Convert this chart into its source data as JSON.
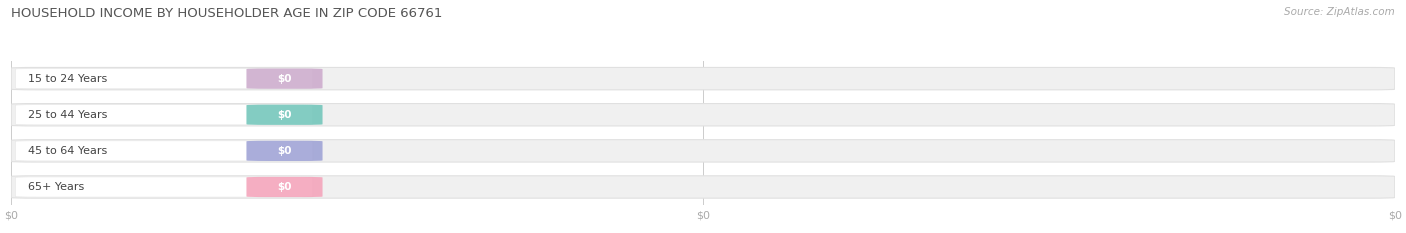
{
  "title": "HOUSEHOLD INCOME BY HOUSEHOLDER AGE IN ZIP CODE 66761",
  "source_text": "Source: ZipAtlas.com",
  "categories": [
    "15 to 24 Years",
    "25 to 44 Years",
    "45 to 64 Years",
    "65+ Years"
  ],
  "values": [
    0,
    0,
    0,
    0
  ],
  "bar_colors": [
    "#cba8cb",
    "#6dc4b8",
    "#9b9fd4",
    "#f4a0b8"
  ],
  "bar_bg_color": "#f0f0f0",
  "tick_label_color": "#aaaaaa",
  "title_color": "#555555",
  "source_color": "#aaaaaa",
  "value_label": "$0",
  "x_tick_positions": [
    0.0,
    0.5,
    1.0
  ],
  "x_tick_labels": [
    "$0",
    "$0",
    "$0"
  ],
  "background_color": "#ffffff",
  "fig_width": 14.06,
  "fig_height": 2.33
}
